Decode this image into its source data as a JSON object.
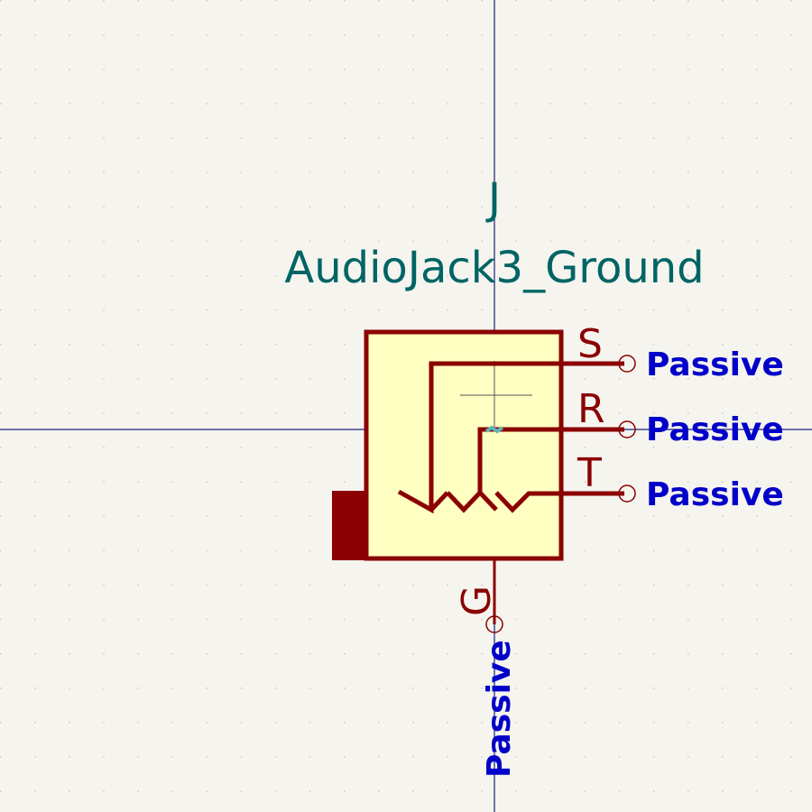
{
  "symbol": {
    "reference": "J",
    "value": "AudioJack3_Ground"
  },
  "pins": [
    {
      "name": "S",
      "type": "Passive"
    },
    {
      "name": "R",
      "type": "Passive"
    },
    {
      "name": "T",
      "type": "Passive"
    },
    {
      "name": "G",
      "type": "Passive"
    }
  ],
  "colors": {
    "background": "#f5f4ef",
    "grid_dot": "#c8c8c8",
    "crosshair": "#1a237e",
    "symbol_outline": "#8b0000",
    "symbol_fill": "#ffffc2",
    "field_text": "#006464",
    "pin_type_text": "#0000c8",
    "anchor": "#5fb3b3"
  }
}
